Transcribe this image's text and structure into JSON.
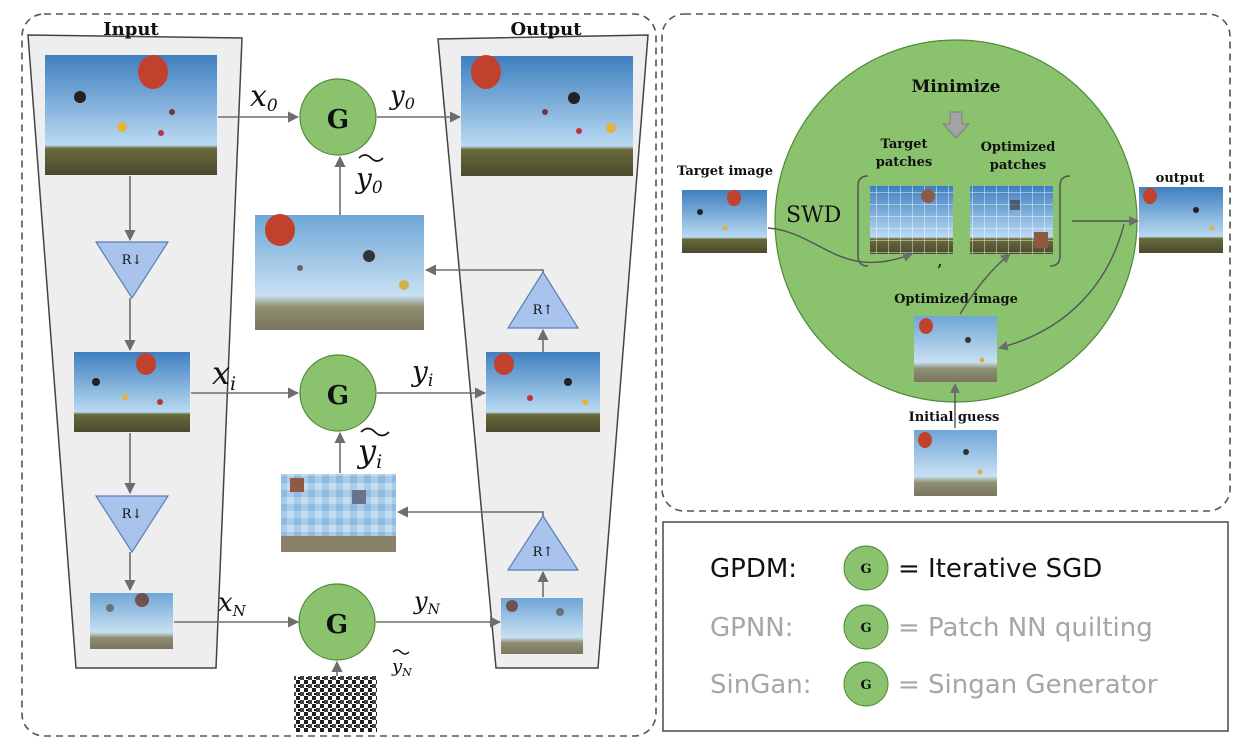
{
  "left_panel": {
    "input_label": "Input",
    "output_label": "Output",
    "generator_label": "G",
    "resize_down": "R↓",
    "resize_up": "R↑",
    "levels": [
      {
        "x": "x",
        "x_sub": "0",
        "y": "y",
        "y_sub": "0",
        "yt": "y",
        "yt_sub": "0"
      },
      {
        "x": "x",
        "x_sub": "i",
        "y": "y",
        "y_sub": "i",
        "yt": "y",
        "yt_sub": "i"
      },
      {
        "x": "x",
        "x_sub": "N",
        "y": "y",
        "y_sub": "N",
        "yt": "y",
        "yt_sub": "N"
      }
    ]
  },
  "right_panel": {
    "title": "Minimize",
    "target_image": "Target image",
    "swd": "SWD",
    "target_patches_1": "Target",
    "target_patches_2": "patches",
    "optimized_patches_1": "Optimized",
    "optimized_patches_2": "patches",
    "comma": ",",
    "output": "output",
    "optimized_image": "Optimized image",
    "initial_guess": "Initial guess"
  },
  "legend": {
    "rows": [
      {
        "name": "GPDM:",
        "g": "G",
        "desc": "= Iterative SGD"
      },
      {
        "name": "GPNN:",
        "g": "G",
        "desc": "= Patch NN quilting"
      },
      {
        "name": "SinGan:",
        "g": "G",
        "desc": "= Singan Generator"
      }
    ]
  },
  "colors": {
    "green": "#8bc26e",
    "green_stroke": "#4e8a3a",
    "blue_tri": "#a9c4ec",
    "sky_top": "#3f7fc0",
    "sky_bottom": "#b9daf2",
    "funnel": "#eeeeee",
    "arrow": "#6d6d6d"
  }
}
